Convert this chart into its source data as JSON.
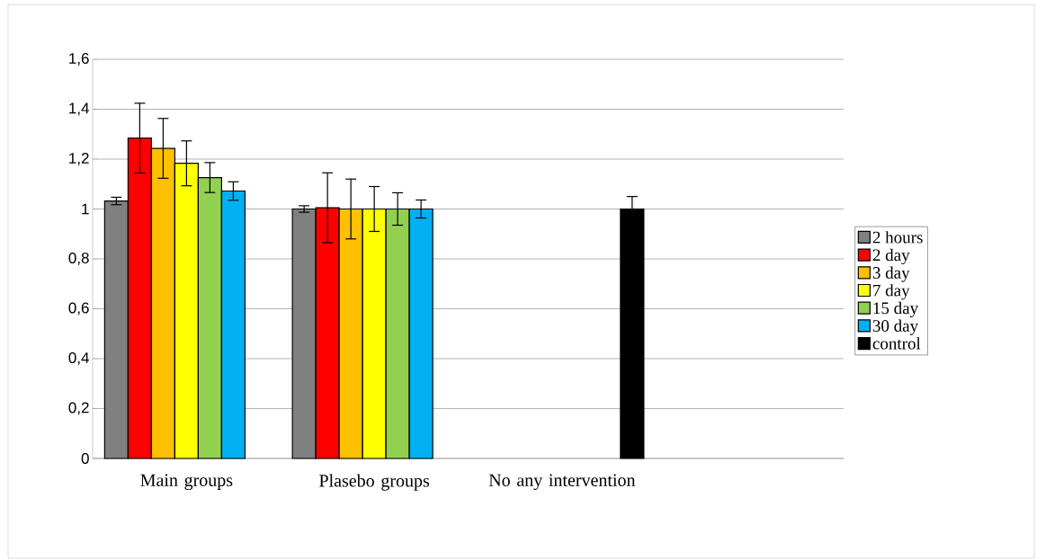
{
  "chart_data": {
    "type": "bar",
    "categories": [
      "Main groups",
      "Plasebo  groups",
      "No any intervention",
      null
    ],
    "series": [
      {
        "name": "2 hours",
        "color": "#808080",
        "values": [
          1.032,
          1.0,
          null,
          null
        ],
        "errors": [
          0.015,
          0.013,
          null,
          null
        ]
      },
      {
        "name": "2 day",
        "color": "#ff0000",
        "values": [
          1.284,
          1.005,
          null,
          null
        ],
        "errors": [
          0.14,
          0.14,
          null,
          null
        ]
      },
      {
        "name": "3 day",
        "color": "#ffc000",
        "values": [
          1.243,
          1.0,
          null,
          null
        ],
        "errors": [
          0.12,
          0.12,
          null,
          null
        ]
      },
      {
        "name": "7 day",
        "color": "#ffff00",
        "values": [
          1.183,
          1.0,
          null,
          null
        ],
        "errors": [
          0.09,
          0.09,
          null,
          null
        ]
      },
      {
        "name": "15 day",
        "color": "#92d050",
        "values": [
          1.126,
          1.0,
          null,
          null
        ],
        "errors": [
          0.06,
          0.065,
          null,
          null
        ]
      },
      {
        "name": "30 day",
        "color": "#00b0f0",
        "values": [
          1.072,
          1.0,
          null,
          null
        ],
        "errors": [
          0.037,
          0.036,
          null,
          null
        ]
      },
      {
        "name": "control",
        "color": "#000000",
        "values": [
          null,
          null,
          1.0,
          null
        ],
        "errors": [
          null,
          null,
          0.05,
          null
        ]
      }
    ],
    "ylim": [
      0,
      1.6
    ],
    "yticks": [
      0,
      {
        "value": 0.2,
        "label": "0,2"
      },
      {
        "value": 0.4,
        "label": "0,4"
      },
      {
        "value": 0.6,
        "label": "0,6"
      },
      {
        "value": 0.8,
        "label": "0,8"
      },
      1,
      {
        "value": 1.2,
        "label": "1,2"
      },
      {
        "value": 1.4,
        "label": "1,4"
      },
      {
        "value": 1.6,
        "label": "1,6"
      }
    ],
    "grid": "y",
    "legend": "right"
  }
}
